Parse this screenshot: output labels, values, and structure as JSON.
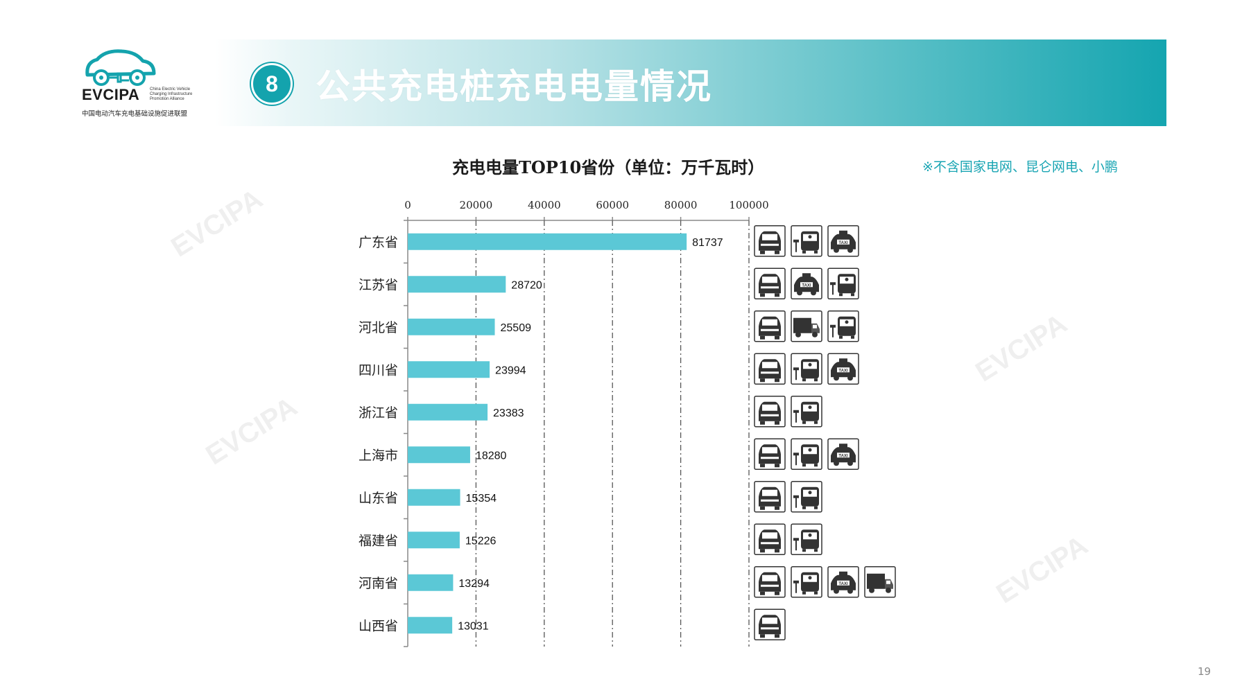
{
  "logo": {
    "name": "EVCIPA",
    "subtitle_en": "China Electric Vehicle Charging Infrastructure Promotion Alliance",
    "subtitle_cn": "中国电动汽车充电基础设施促进联盟"
  },
  "banner": {
    "number": "8",
    "title": "公共充电桩充电电量情况"
  },
  "note": "※不含国家电网、昆仑网电、小鹏",
  "page_number": "19",
  "colors": {
    "accent": "#14a3ad",
    "bar": "#5bc8d6",
    "note": "#19a5b3"
  },
  "chart_data": {
    "type": "bar",
    "orientation": "horizontal",
    "title": "充电电量TOP10省份（单位：万千瓦时）",
    "categories": [
      "广东省",
      "江苏省",
      "河北省",
      "四川省",
      "浙江省",
      "上海市",
      "山东省",
      "福建省",
      "河南省",
      "山西省"
    ],
    "values": [
      81737,
      28720,
      25509,
      23994,
      23383,
      18280,
      15354,
      15226,
      13294,
      13031
    ],
    "x_ticks": [
      "0",
      "20000",
      "40000",
      "60000",
      "80000",
      "100000"
    ],
    "xlim": [
      0,
      100000
    ],
    "grid": "vertical dash-dot",
    "vehicle_icons": [
      [
        "car-icon",
        "bus-icon",
        "taxi-icon"
      ],
      [
        "car-icon",
        "taxi-icon",
        "bus-icon"
      ],
      [
        "car-icon",
        "truck-icon",
        "bus-icon"
      ],
      [
        "car-icon",
        "bus-icon",
        "taxi-icon"
      ],
      [
        "car-icon",
        "bus-icon"
      ],
      [
        "car-icon",
        "bus-icon",
        "taxi-icon"
      ],
      [
        "car-icon",
        "bus-icon"
      ],
      [
        "car-icon",
        "bus-icon"
      ],
      [
        "car-icon",
        "bus-icon",
        "taxi-icon",
        "truck-icon"
      ],
      [
        "car-icon"
      ]
    ]
  }
}
